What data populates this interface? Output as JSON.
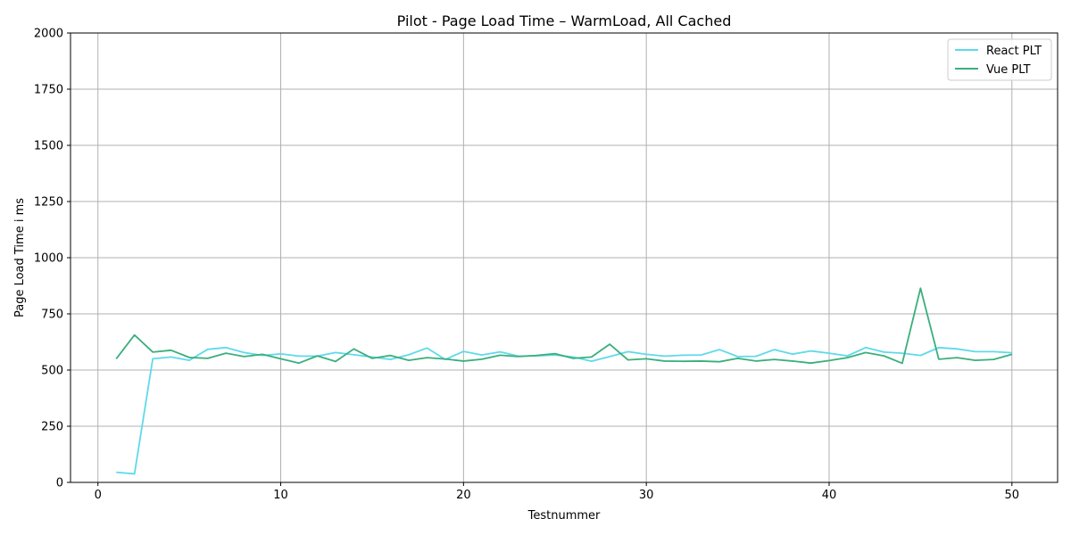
{
  "chart_data": {
    "type": "line",
    "title": "Pilot - Page Load Time – WarmLoad, All Cached",
    "xlabel": "Testnummer",
    "ylabel": "Page Load Time i ms",
    "xlim": [
      -1.5,
      52.5
    ],
    "ylim": [
      0,
      2000
    ],
    "xticks": [
      0,
      10,
      20,
      30,
      40,
      50
    ],
    "yticks": [
      0,
      250,
      500,
      750,
      1000,
      1250,
      1500,
      1750,
      2000
    ],
    "grid": true,
    "legend_position": "top-right",
    "x": [
      1,
      2,
      3,
      4,
      5,
      6,
      7,
      8,
      9,
      10,
      11,
      12,
      13,
      14,
      15,
      16,
      17,
      18,
      19,
      20,
      21,
      22,
      23,
      24,
      25,
      26,
      27,
      28,
      29,
      30,
      31,
      32,
      33,
      34,
      35,
      36,
      37,
      38,
      39,
      40,
      41,
      42,
      43,
      44,
      45,
      46,
      47,
      48,
      49,
      50
    ],
    "series": [
      {
        "name": "React PLT",
        "color": "#5fd9ea",
        "values": [
          45,
          38,
          550,
          558,
          543,
          592,
          600,
          578,
          565,
          572,
          562,
          562,
          578,
          568,
          558,
          547,
          568,
          598,
          547,
          583,
          567,
          581,
          562,
          563,
          567,
          558,
          539,
          560,
          582,
          570,
          562,
          566,
          567,
          591,
          560,
          561,
          591,
          571,
          585,
          575,
          563,
          600,
          580,
          575,
          565,
          600,
          594,
          582,
          582,
          577
        ]
      },
      {
        "name": "Vue PLT",
        "color": "#3aaf7c",
        "values": [
          550,
          656,
          580,
          588,
          556,
          552,
          575,
          560,
          570,
          550,
          531,
          563,
          538,
          594,
          552,
          565,
          543,
          555,
          549,
          540,
          548,
          566,
          560,
          565,
          573,
          552,
          558,
          615,
          545,
          550,
          540,
          539,
          540,
          537,
          552,
          540,
          547,
          540,
          531,
          542,
          555,
          578,
          563,
          530,
          864,
          548,
          555,
          543,
          547,
          570
        ]
      }
    ]
  }
}
